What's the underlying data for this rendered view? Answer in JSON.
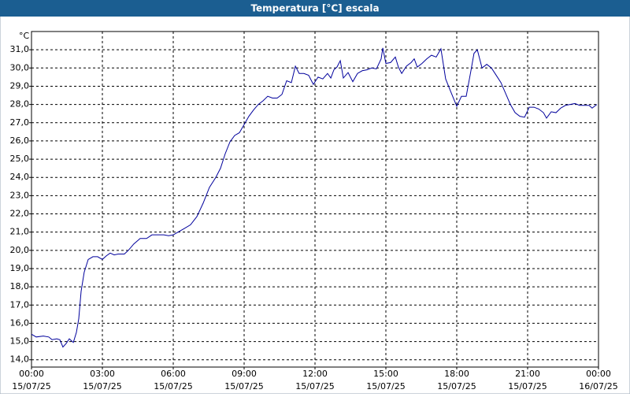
{
  "chart_data": {
    "type": "line",
    "title": "Temperatura [°C] escala",
    "y_unit_label": "°C",
    "xlim": [
      0,
      24
    ],
    "ylim": [
      13.6,
      32
    ],
    "grid": true,
    "xticks": [
      {
        "value": 0,
        "label": "00:00"
      },
      {
        "value": 3,
        "label": "03:00"
      },
      {
        "value": 6,
        "label": "06:00"
      },
      {
        "value": 9,
        "label": "09:00"
      },
      {
        "value": 12,
        "label": "12:00"
      },
      {
        "value": 15,
        "label": "15:00"
      },
      {
        "value": 18,
        "label": "18:00"
      },
      {
        "value": 21,
        "label": "21:00"
      },
      {
        "value": 24,
        "label": "00:00"
      }
    ],
    "xtick_dates": [
      "15/07/25",
      "15/07/25",
      "15/07/25",
      "15/07/25",
      "15/07/25",
      "15/07/25",
      "15/07/25",
      "15/07/25",
      "16/07/25"
    ],
    "yticks": [
      {
        "value": 14,
        "label": "14,0"
      },
      {
        "value": 15,
        "label": "15,0"
      },
      {
        "value": 16,
        "label": "16,0"
      },
      {
        "value": 17,
        "label": "17,0"
      },
      {
        "value": 18,
        "label": "18,0"
      },
      {
        "value": 19,
        "label": "19,0"
      },
      {
        "value": 20,
        "label": "20,0"
      },
      {
        "value": 21,
        "label": "21,0"
      },
      {
        "value": 22,
        "label": "22,0"
      },
      {
        "value": 23,
        "label": "23,0"
      },
      {
        "value": 24,
        "label": "24,0"
      },
      {
        "value": 25,
        "label": "25,0"
      },
      {
        "value": 26,
        "label": "26,0"
      },
      {
        "value": 27,
        "label": "27,0"
      },
      {
        "value": 28,
        "label": "28,0"
      },
      {
        "value": 29,
        "label": "29,0"
      },
      {
        "value": 30,
        "label": "30,0"
      },
      {
        "value": 31,
        "label": "31,0"
      }
    ],
    "x": [
      0,
      0.2,
      0.5,
      0.73,
      0.87,
      1.07,
      1.2,
      1.33,
      1.47,
      1.6,
      1.77,
      1.9,
      2.0,
      2.1,
      2.23,
      2.4,
      2.6,
      2.8,
      3.0,
      3.17,
      3.33,
      3.5,
      3.67,
      3.93,
      4.1,
      4.33,
      4.6,
      4.87,
      5.1,
      5.33,
      5.6,
      5.8,
      6.0,
      6.2,
      6.47,
      6.73,
      7.0,
      7.27,
      7.53,
      7.8,
      8.0,
      8.2,
      8.4,
      8.6,
      8.8,
      9.0,
      9.2,
      9.4,
      9.6,
      9.8,
      10.0,
      10.2,
      10.4,
      10.6,
      10.8,
      11.0,
      11.17,
      11.33,
      11.53,
      11.73,
      11.93,
      12.13,
      12.33,
      12.53,
      12.67,
      12.8,
      12.93,
      13.07,
      13.2,
      13.4,
      13.6,
      13.8,
      14.0,
      14.2,
      14.4,
      14.6,
      14.8,
      14.87,
      15.0,
      15.2,
      15.4,
      15.53,
      15.67,
      15.87,
      16.07,
      16.2,
      16.33,
      16.53,
      16.73,
      16.93,
      17.13,
      17.33,
      17.53,
      17.73,
      18.0,
      18.2,
      18.4,
      18.6,
      18.73,
      18.87,
      19.07,
      19.27,
      19.47,
      19.67,
      19.87,
      20.07,
      20.27,
      20.47,
      20.67,
      20.87,
      21.07,
      21.27,
      21.47,
      21.67,
      21.8,
      22.0,
      22.2,
      22.4,
      22.6,
      22.8,
      23.0,
      23.2,
      23.4,
      23.6,
      23.73,
      23.93
    ],
    "series": [
      {
        "name": "Temperatura",
        "color": "#00009c",
        "values": [
          15.4,
          15.25,
          15.3,
          15.25,
          15.1,
          15.15,
          15.1,
          14.7,
          14.9,
          15.15,
          14.95,
          15.5,
          16.25,
          17.75,
          18.8,
          19.5,
          19.65,
          19.65,
          19.5,
          19.7,
          19.85,
          19.75,
          19.8,
          19.8,
          20.0,
          20.35,
          20.65,
          20.65,
          20.85,
          20.85,
          20.85,
          20.8,
          20.85,
          21.0,
          21.2,
          21.4,
          21.85,
          22.6,
          23.45,
          24.0,
          24.5,
          25.3,
          25.95,
          26.3,
          26.45,
          26.9,
          27.35,
          27.7,
          28.0,
          28.2,
          28.45,
          28.35,
          28.35,
          28.55,
          29.3,
          29.2,
          30.1,
          29.7,
          29.7,
          29.6,
          29.1,
          29.5,
          29.4,
          29.7,
          29.45,
          29.9,
          30.05,
          30.4,
          29.45,
          29.75,
          29.25,
          29.7,
          29.85,
          29.9,
          30.0,
          29.95,
          30.5,
          31.1,
          30.25,
          30.3,
          30.6,
          30.05,
          29.7,
          30.1,
          30.3,
          30.5,
          30.05,
          30.25,
          30.5,
          30.7,
          30.6,
          31.05,
          29.4,
          28.75,
          27.9,
          28.45,
          28.45,
          29.85,
          30.8,
          31.0,
          30.0,
          30.2,
          30.0,
          29.6,
          29.2,
          28.6,
          28.0,
          27.55,
          27.35,
          27.3,
          27.85,
          27.85,
          27.75,
          27.55,
          27.25,
          27.6,
          27.55,
          27.8,
          27.95,
          28.0,
          28.05,
          27.95,
          27.95,
          27.95,
          27.8,
          28.0
        ]
      }
    ]
  }
}
